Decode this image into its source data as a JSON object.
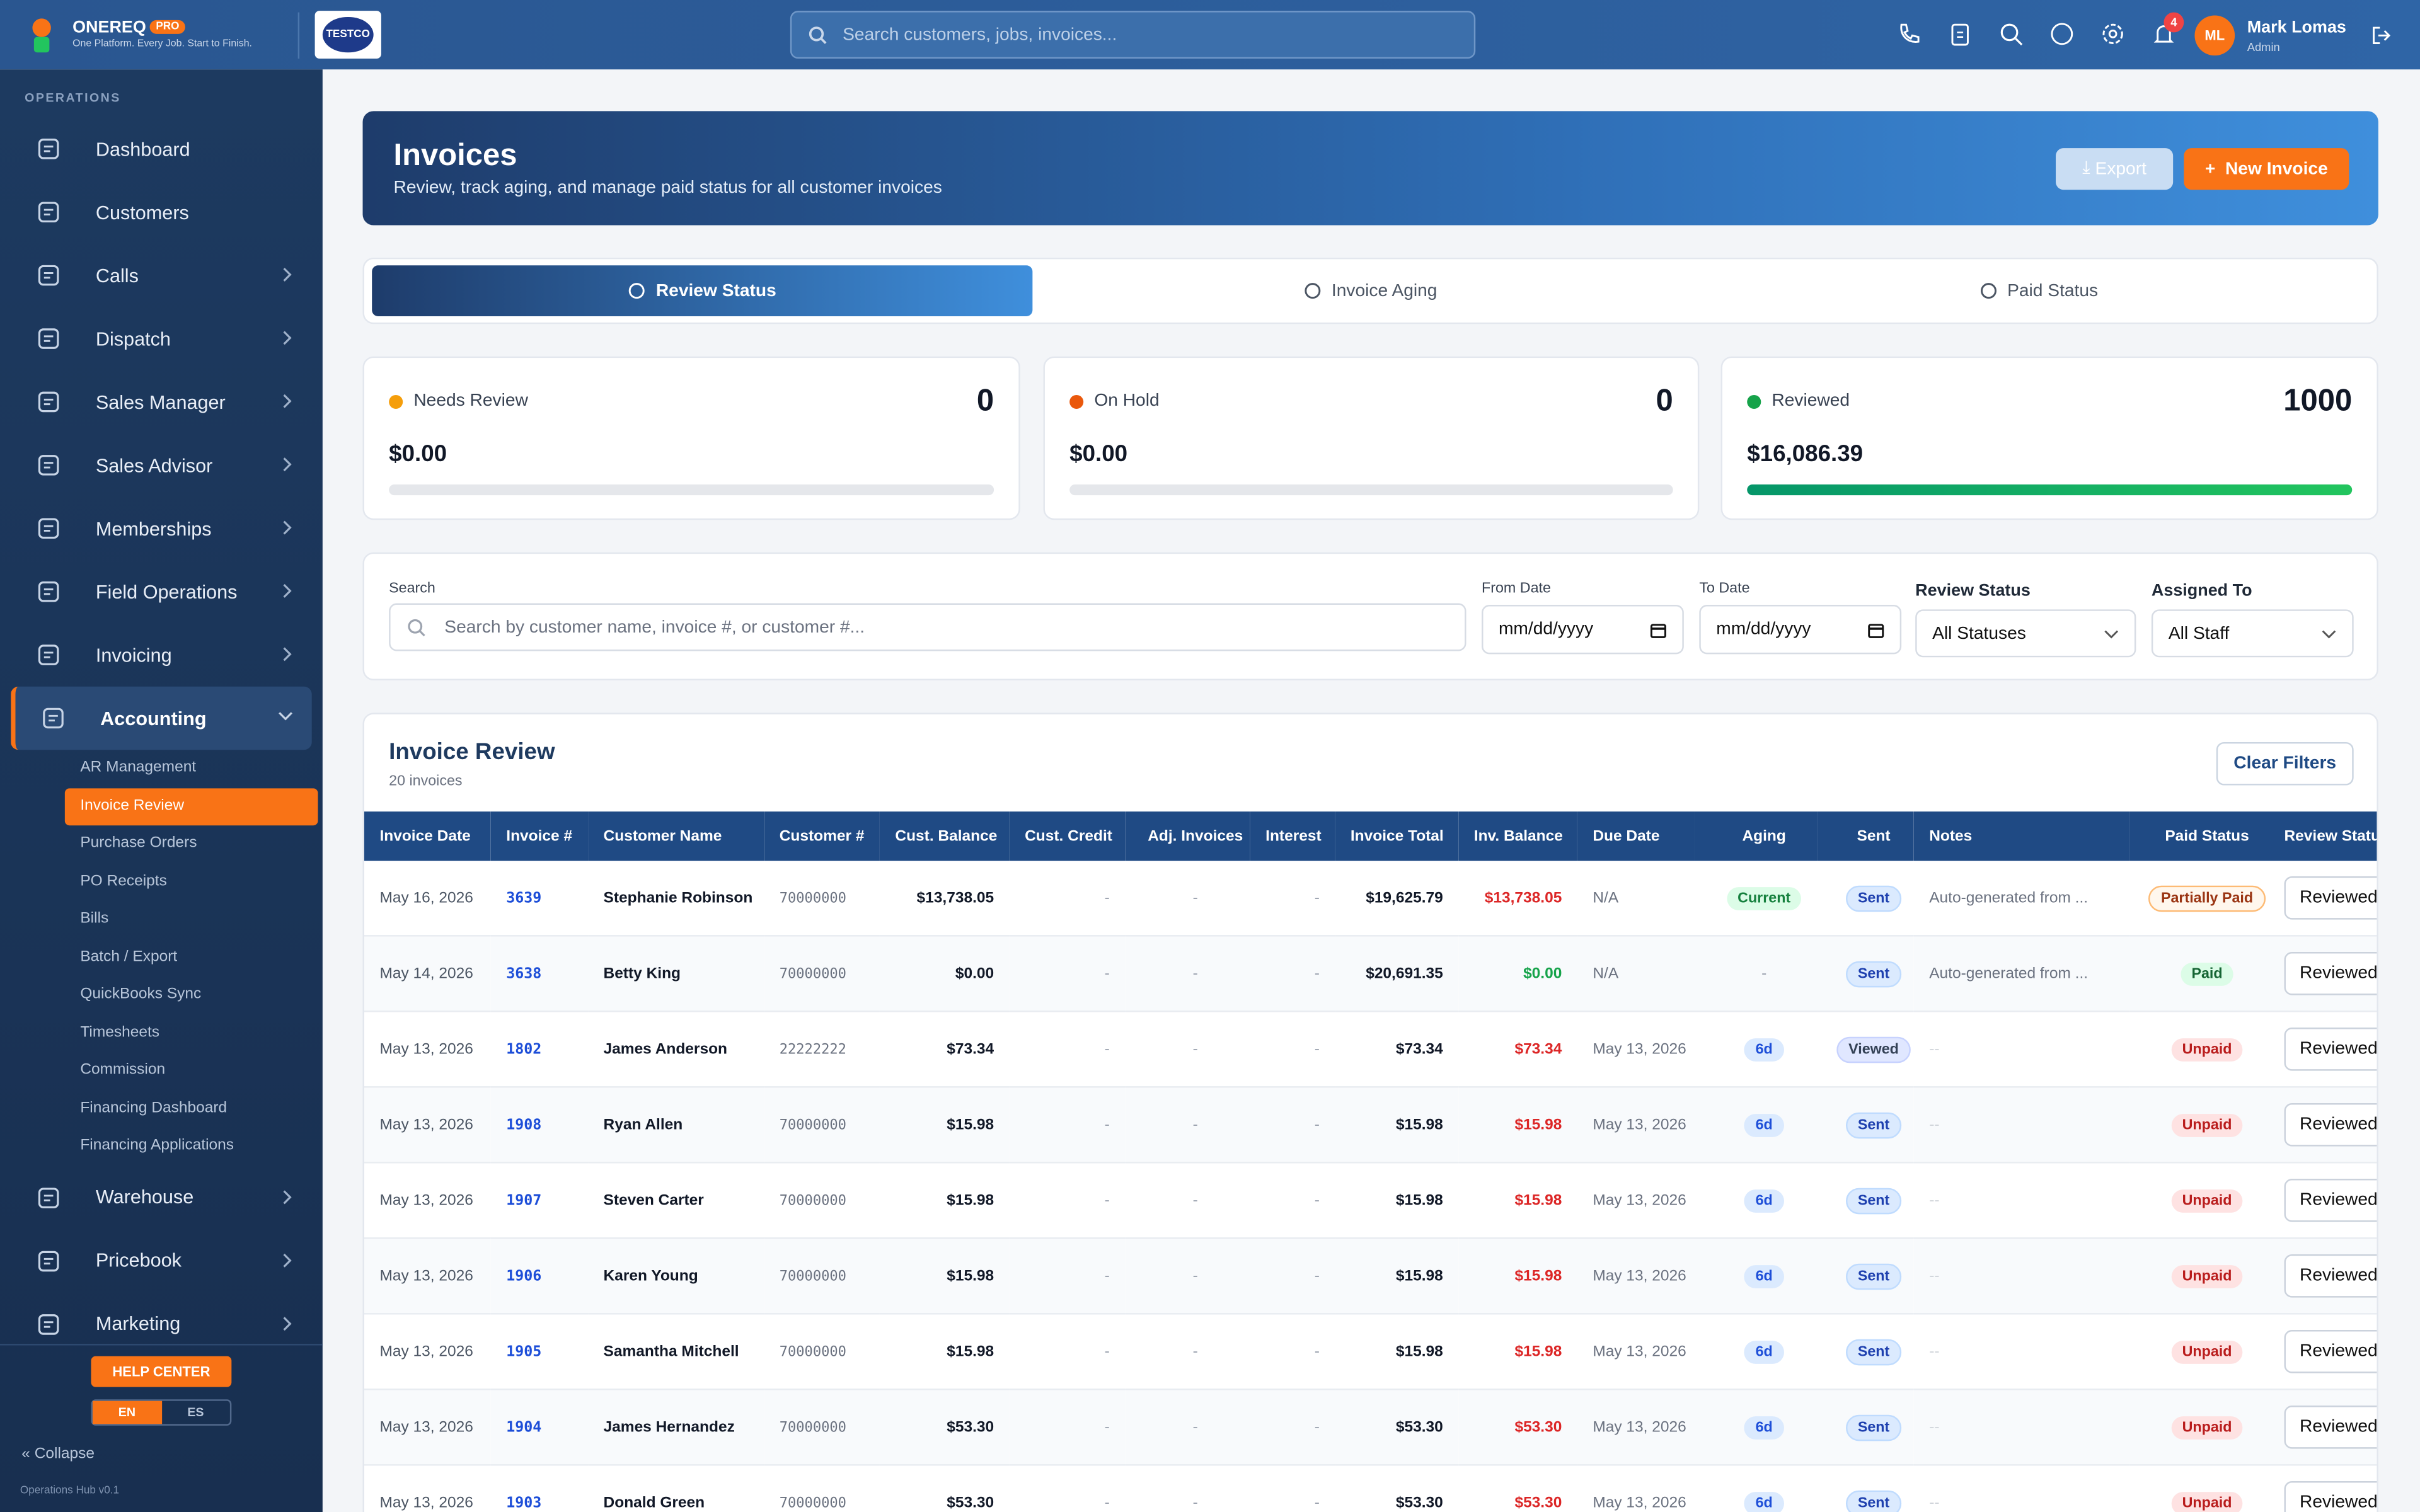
{
  "header": {
    "brand": "ONEREQ",
    "badge": "PRO",
    "tagline": "One Platform. Every Job. Start to Finish.",
    "logo": "TESTCO",
    "search_placeholder": "Search customers, jobs, invoices...",
    "notifications": "4",
    "avatar": "ML",
    "user_name": "Mark Lomas",
    "user_role": "Admin"
  },
  "sidebar": {
    "section": "OPERATIONS",
    "items": [
      "Dashboard",
      "Customers",
      "Calls",
      "Dispatch",
      "Sales Manager",
      "Sales Advisor",
      "Memberships",
      "Field Operations",
      "Invoicing",
      "Accounting",
      "Warehouse",
      "Pricebook",
      "Marketing"
    ],
    "accounting_sub": [
      "AR Management",
      "Invoice Review",
      "Purchase Orders",
      "PO Receipts",
      "Bills",
      "Batch / Export",
      "QuickBooks Sync",
      "Timesheets",
      "Commission",
      "Financing Dashboard",
      "Financing Applications"
    ],
    "help": "HELP CENTER",
    "langs": [
      "EN",
      "ES"
    ],
    "collapse": "Collapse",
    "version": "Operations Hub v0.1"
  },
  "page": {
    "title": "Invoices",
    "subtitle": "Review, track aging, and manage paid status for all customer invoices",
    "export": "Export",
    "new_invoice": "New Invoice"
  },
  "tabs": [
    "Review Status",
    "Invoice Aging",
    "Paid Status"
  ],
  "cards": [
    {
      "label": "Needs Review",
      "count": "0",
      "amount": "$0.00"
    },
    {
      "label": "On Hold",
      "count": "0",
      "amount": "$0.00"
    },
    {
      "label": "Reviewed",
      "count": "1000",
      "amount": "$16,086.39"
    }
  ],
  "filters": {
    "search_label": "Search",
    "search_placeholder": "Search by customer name, invoice #, or customer #...",
    "from_label": "From Date",
    "from_placeholder": "mm/dd/yyyy",
    "to_label": "To Date",
    "to_placeholder": "mm/dd/yyyy",
    "review_label": "Review Status",
    "review_value": "All Statuses",
    "assigned_label": "Assigned To",
    "assigned_value": "All Staff"
  },
  "table": {
    "title": "Invoice Review",
    "count": "20 invoices",
    "clear": "Clear Filters",
    "columns": [
      "Invoice Date",
      "Invoice #",
      "Customer Name",
      "Customer #",
      "Cust. Balance",
      "Cust. Credit",
      "Adj. Invoices",
      "Interest",
      "Invoice Total",
      "Inv. Balance",
      "Due Date",
      "Aging",
      "Sent",
      "Notes",
      "Paid Status",
      "Review Status"
    ],
    "rows": [
      [
        "May 16, 2026",
        "3639",
        "Stephanie Robinson",
        "70000000",
        "$13,738.05",
        "-",
        "-",
        "-",
        "$19,625.79",
        "$13,738.05",
        "N/A",
        "Current",
        "Sent",
        "Auto-generated from ...",
        "Partially Paid",
        "Reviewed"
      ],
      [
        "May 14, 2026",
        "3638",
        "Betty King",
        "70000000",
        "$0.00",
        "-",
        "-",
        "-",
        "$20,691.35",
        "$0.00",
        "N/A",
        "-",
        "Sent",
        "Auto-generated from ...",
        "Paid",
        "Reviewed"
      ],
      [
        "May 13, 2026",
        "1802",
        "James Anderson",
        "22222222",
        "$73.34",
        "-",
        "-",
        "-",
        "$73.34",
        "$73.34",
        "May 13, 2026",
        "6d",
        "Viewed",
        "--",
        "Unpaid",
        "Reviewed"
      ],
      [
        "May 13, 2026",
        "1908",
        "Ryan Allen",
        "70000000",
        "$15.98",
        "-",
        "-",
        "-",
        "$15.98",
        "$15.98",
        "May 13, 2026",
        "6d",
        "Sent",
        "--",
        "Unpaid",
        "Reviewed"
      ],
      [
        "May 13, 2026",
        "1907",
        "Steven Carter",
        "70000000",
        "$15.98",
        "-",
        "-",
        "-",
        "$15.98",
        "$15.98",
        "May 13, 2026",
        "6d",
        "Sent",
        "--",
        "Unpaid",
        "Reviewed"
      ],
      [
        "May 13, 2026",
        "1906",
        "Karen Young",
        "70000000",
        "$15.98",
        "-",
        "-",
        "-",
        "$15.98",
        "$15.98",
        "May 13, 2026",
        "6d",
        "Sent",
        "--",
        "Unpaid",
        "Reviewed"
      ],
      [
        "May 13, 2026",
        "1905",
        "Samantha Mitchell",
        "70000000",
        "$15.98",
        "-",
        "-",
        "-",
        "$15.98",
        "$15.98",
        "May 13, 2026",
        "6d",
        "Sent",
        "--",
        "Unpaid",
        "Reviewed"
      ],
      [
        "May 13, 2026",
        "1904",
        "James Hernandez",
        "70000000",
        "$53.30",
        "-",
        "-",
        "-",
        "$53.30",
        "$53.30",
        "May 13, 2026",
        "6d",
        "Sent",
        "--",
        "Unpaid",
        "Reviewed"
      ],
      [
        "May 13, 2026",
        "1903",
        "Donald Green",
        "70000000",
        "$53.30",
        "-",
        "-",
        "-",
        "$53.30",
        "$53.30",
        "May 13, 2026",
        "6d",
        "Sent",
        "--",
        "Unpaid",
        "Reviewed"
      ]
    ]
  }
}
